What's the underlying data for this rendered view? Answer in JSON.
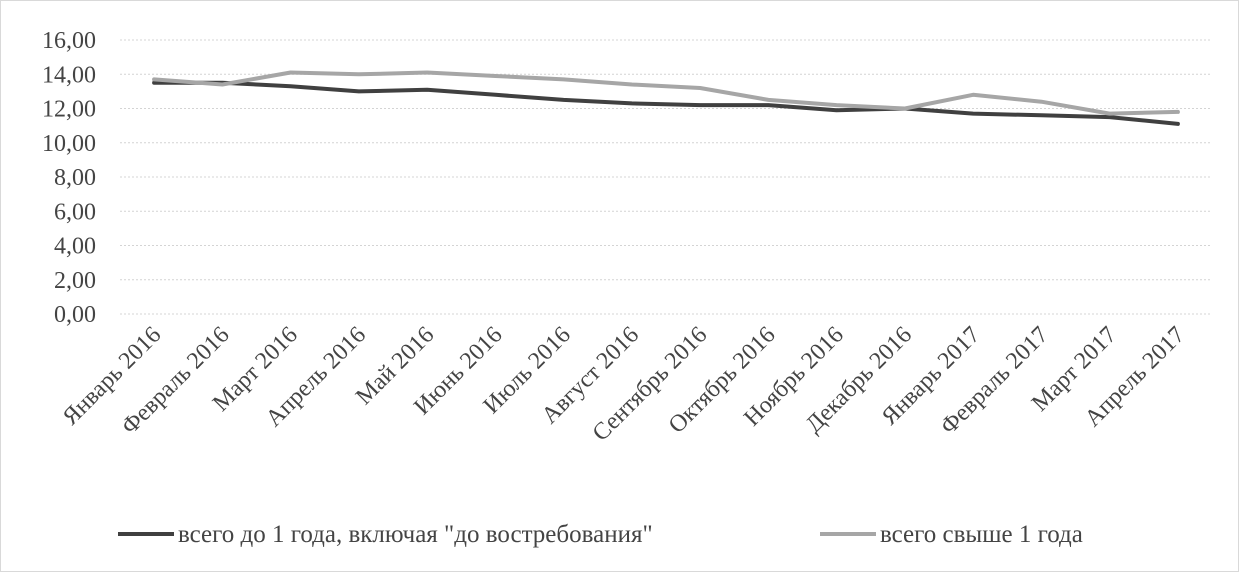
{
  "chart_data": {
    "type": "line",
    "title": "",
    "xlabel": "",
    "ylabel": "",
    "ylim": [
      0,
      16
    ],
    "y_ticks": [
      "0,00",
      "2,00",
      "4,00",
      "6,00",
      "8,00",
      "10,00",
      "12,00",
      "14,00",
      "16,00"
    ],
    "grid": true,
    "legend_position": "bottom",
    "categories": [
      "Январь 2016",
      "Февраль 2016",
      "Март 2016",
      "Апрель 2016",
      "Май 2016",
      "Июнь 2016",
      "Июль 2016",
      "Август 2016",
      "Сентябрь 2016",
      "Октябрь 2016",
      "Ноябрь 2016",
      "Декабрь 2016",
      "Январь 2017",
      "Февраль 2017",
      "Март 2017",
      "Апрель 2017"
    ],
    "series": [
      {
        "name": "всего до 1 года, включая \"до востребования\"",
        "color": "#404040",
        "values": [
          13.5,
          13.5,
          13.3,
          13.0,
          13.1,
          12.8,
          12.5,
          12.3,
          12.2,
          12.2,
          11.9,
          12.0,
          11.7,
          11.6,
          11.5,
          11.1
        ]
      },
      {
        "name": "всего свыше 1 года",
        "color": "#a6a6a6",
        "values": [
          13.7,
          13.4,
          14.1,
          14.0,
          14.1,
          13.9,
          13.7,
          13.4,
          13.2,
          12.5,
          12.2,
          12.0,
          12.8,
          12.4,
          11.7,
          11.8
        ]
      }
    ]
  }
}
